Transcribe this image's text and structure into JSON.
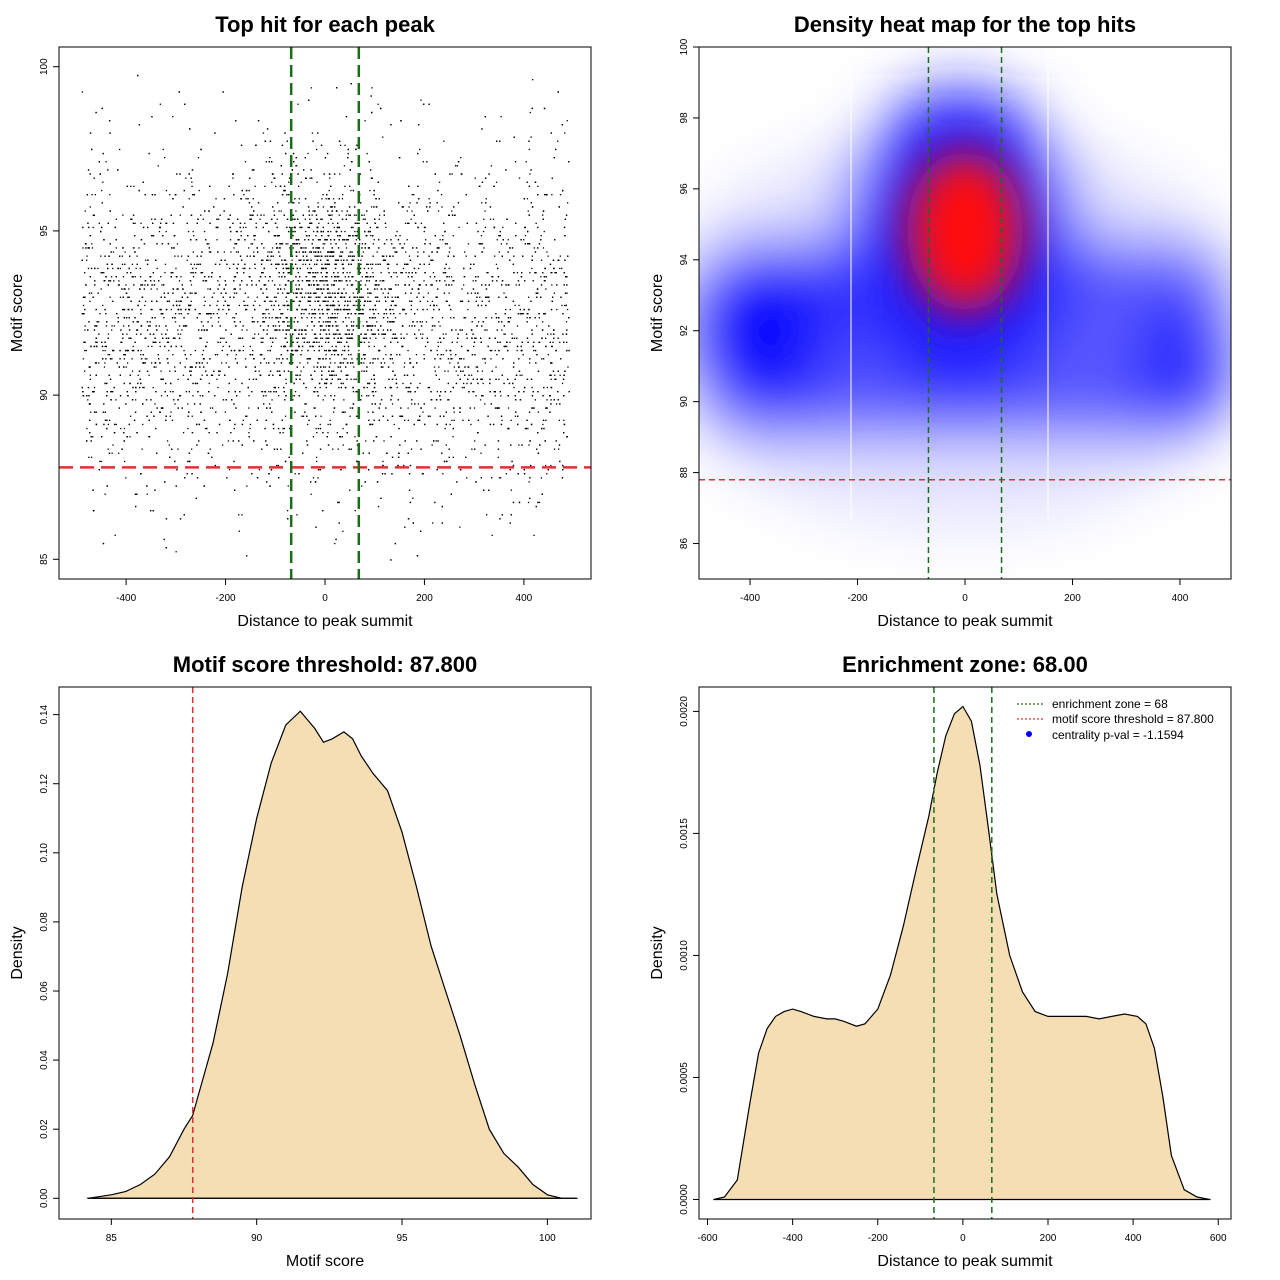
{
  "colors": {
    "density_fill": "#f5deb3",
    "threshold_line": "#e03030",
    "zone_line": "#1a6e1a",
    "centrality_dot": "#0000ff",
    "heat_low": "#ffffff",
    "heat_mid": "#0000ff",
    "heat_high": "#ff0000"
  },
  "chart_data": [
    {
      "type": "scatter",
      "title": "Top hit for each peak",
      "xlabel": "Distance to peak summit",
      "ylabel": "Motif score",
      "xlim": [
        -535,
        535
      ],
      "ylim": [
        84.4,
        100.6
      ],
      "xticks": [
        -400,
        -200,
        0,
        200,
        400
      ],
      "yticks": [
        85,
        90,
        95,
        100
      ],
      "x_range_of_points": [
        -490,
        490
      ],
      "y_range_of_points": [
        85.0,
        99.9
      ],
      "threshold": 87.8,
      "enrichment_zone": [
        -68,
        68
      ],
      "grid": false
    },
    {
      "type": "heatmap",
      "title": "Density heat map for the top hits",
      "xlabel": "Distance to peak summit",
      "ylabel": "Motif score",
      "xlim": [
        -495,
        495
      ],
      "ylim": [
        85.0,
        100.0
      ],
      "xticks": [
        -400,
        -200,
        0,
        200,
        400
      ],
      "yticks": [
        86,
        88,
        90,
        92,
        94,
        96,
        98,
        100
      ],
      "peak": {
        "x": 0,
        "y": 94.8
      },
      "threshold": 87.8,
      "enrichment_zone": [
        -68,
        68
      ],
      "grid": false
    },
    {
      "type": "area",
      "title": "Motif score threshold: 87.800",
      "xlabel": "Motif score",
      "ylabel": "Density",
      "xlim": [
        83.2,
        101.5
      ],
      "ylim": [
        -0.006,
        0.148
      ],
      "xticks": [
        85,
        90,
        95,
        100
      ],
      "yticks": [
        0.0,
        0.02,
        0.04,
        0.06,
        0.08,
        0.1,
        0.12,
        0.14
      ],
      "ytick_labels": [
        "0.00",
        "0.02",
        "0.04",
        "0.06",
        "0.08",
        "0.10",
        "0.12",
        "0.14"
      ],
      "x": [
        84.2,
        85.0,
        85.5,
        86.0,
        86.5,
        87.0,
        87.5,
        87.8,
        88.0,
        88.5,
        89.0,
        89.5,
        90.0,
        90.5,
        91.0,
        91.5,
        92.0,
        92.3,
        92.6,
        93.0,
        93.3,
        93.6,
        94.0,
        94.5,
        95.0,
        95.5,
        96.0,
        96.5,
        97.0,
        97.5,
        98.0,
        98.5,
        99.0,
        99.5,
        100.0,
        100.5,
        101.0
      ],
      "y": [
        0.0,
        0.001,
        0.002,
        0.004,
        0.007,
        0.012,
        0.02,
        0.024,
        0.03,
        0.045,
        0.065,
        0.09,
        0.11,
        0.126,
        0.137,
        0.141,
        0.136,
        0.132,
        0.133,
        0.135,
        0.133,
        0.128,
        0.123,
        0.118,
        0.106,
        0.09,
        0.073,
        0.06,
        0.047,
        0.033,
        0.02,
        0.013,
        0.009,
        0.004,
        0.001,
        0.0,
        0.0
      ],
      "threshold": 87.8,
      "grid": false
    },
    {
      "type": "area",
      "title": "Enrichment zone: 68.00",
      "xlabel": "Distance to peak summit",
      "ylabel": "Density",
      "xlim": [
        -620,
        630
      ],
      "ylim": [
        -8e-05,
        0.0021
      ],
      "xticks": [
        -600,
        -400,
        -200,
        0,
        200,
        400,
        600
      ],
      "yticks": [
        0.0,
        0.0005,
        0.001,
        0.0015,
        0.002
      ],
      "ytick_labels": [
        "0.0000",
        "0.0005",
        "0.0010",
        "0.0015",
        "0.0020"
      ],
      "x": [
        -585,
        -560,
        -530,
        -500,
        -480,
        -460,
        -440,
        -420,
        -400,
        -380,
        -350,
        -320,
        -300,
        -280,
        -250,
        -230,
        -200,
        -170,
        -140,
        -110,
        -80,
        -60,
        -40,
        -20,
        0,
        20,
        40,
        60,
        80,
        110,
        140,
        170,
        200,
        230,
        260,
        290,
        320,
        350,
        380,
        410,
        430,
        450,
        470,
        490,
        520,
        550,
        580
      ],
      "y": [
        0.0,
        1e-05,
        8e-05,
        0.0004,
        0.0006,
        0.0007,
        0.00075,
        0.00077,
        0.00078,
        0.00077,
        0.00075,
        0.00074,
        0.00074,
        0.00073,
        0.00071,
        0.00072,
        0.00078,
        0.00092,
        0.00112,
        0.00135,
        0.00157,
        0.00175,
        0.0019,
        0.00199,
        0.00202,
        0.00196,
        0.00178,
        0.00152,
        0.00125,
        0.001,
        0.00085,
        0.00077,
        0.00075,
        0.00075,
        0.00075,
        0.00075,
        0.00074,
        0.00075,
        0.00076,
        0.00075,
        0.00072,
        0.00062,
        0.00042,
        0.00018,
        4e-05,
        1e-05,
        0.0
      ],
      "enrichment_zone": [
        -68,
        68
      ],
      "grid": false,
      "legend_position": "top-right",
      "legend": [
        {
          "label": "enrichment zone = 68",
          "style": "green-dotted-line"
        },
        {
          "label": "motif score threshold = 87.800",
          "style": "red-dotted-line"
        },
        {
          "label": "centrality p-val = -1.1594",
          "style": "blue-dot"
        }
      ]
    }
  ]
}
